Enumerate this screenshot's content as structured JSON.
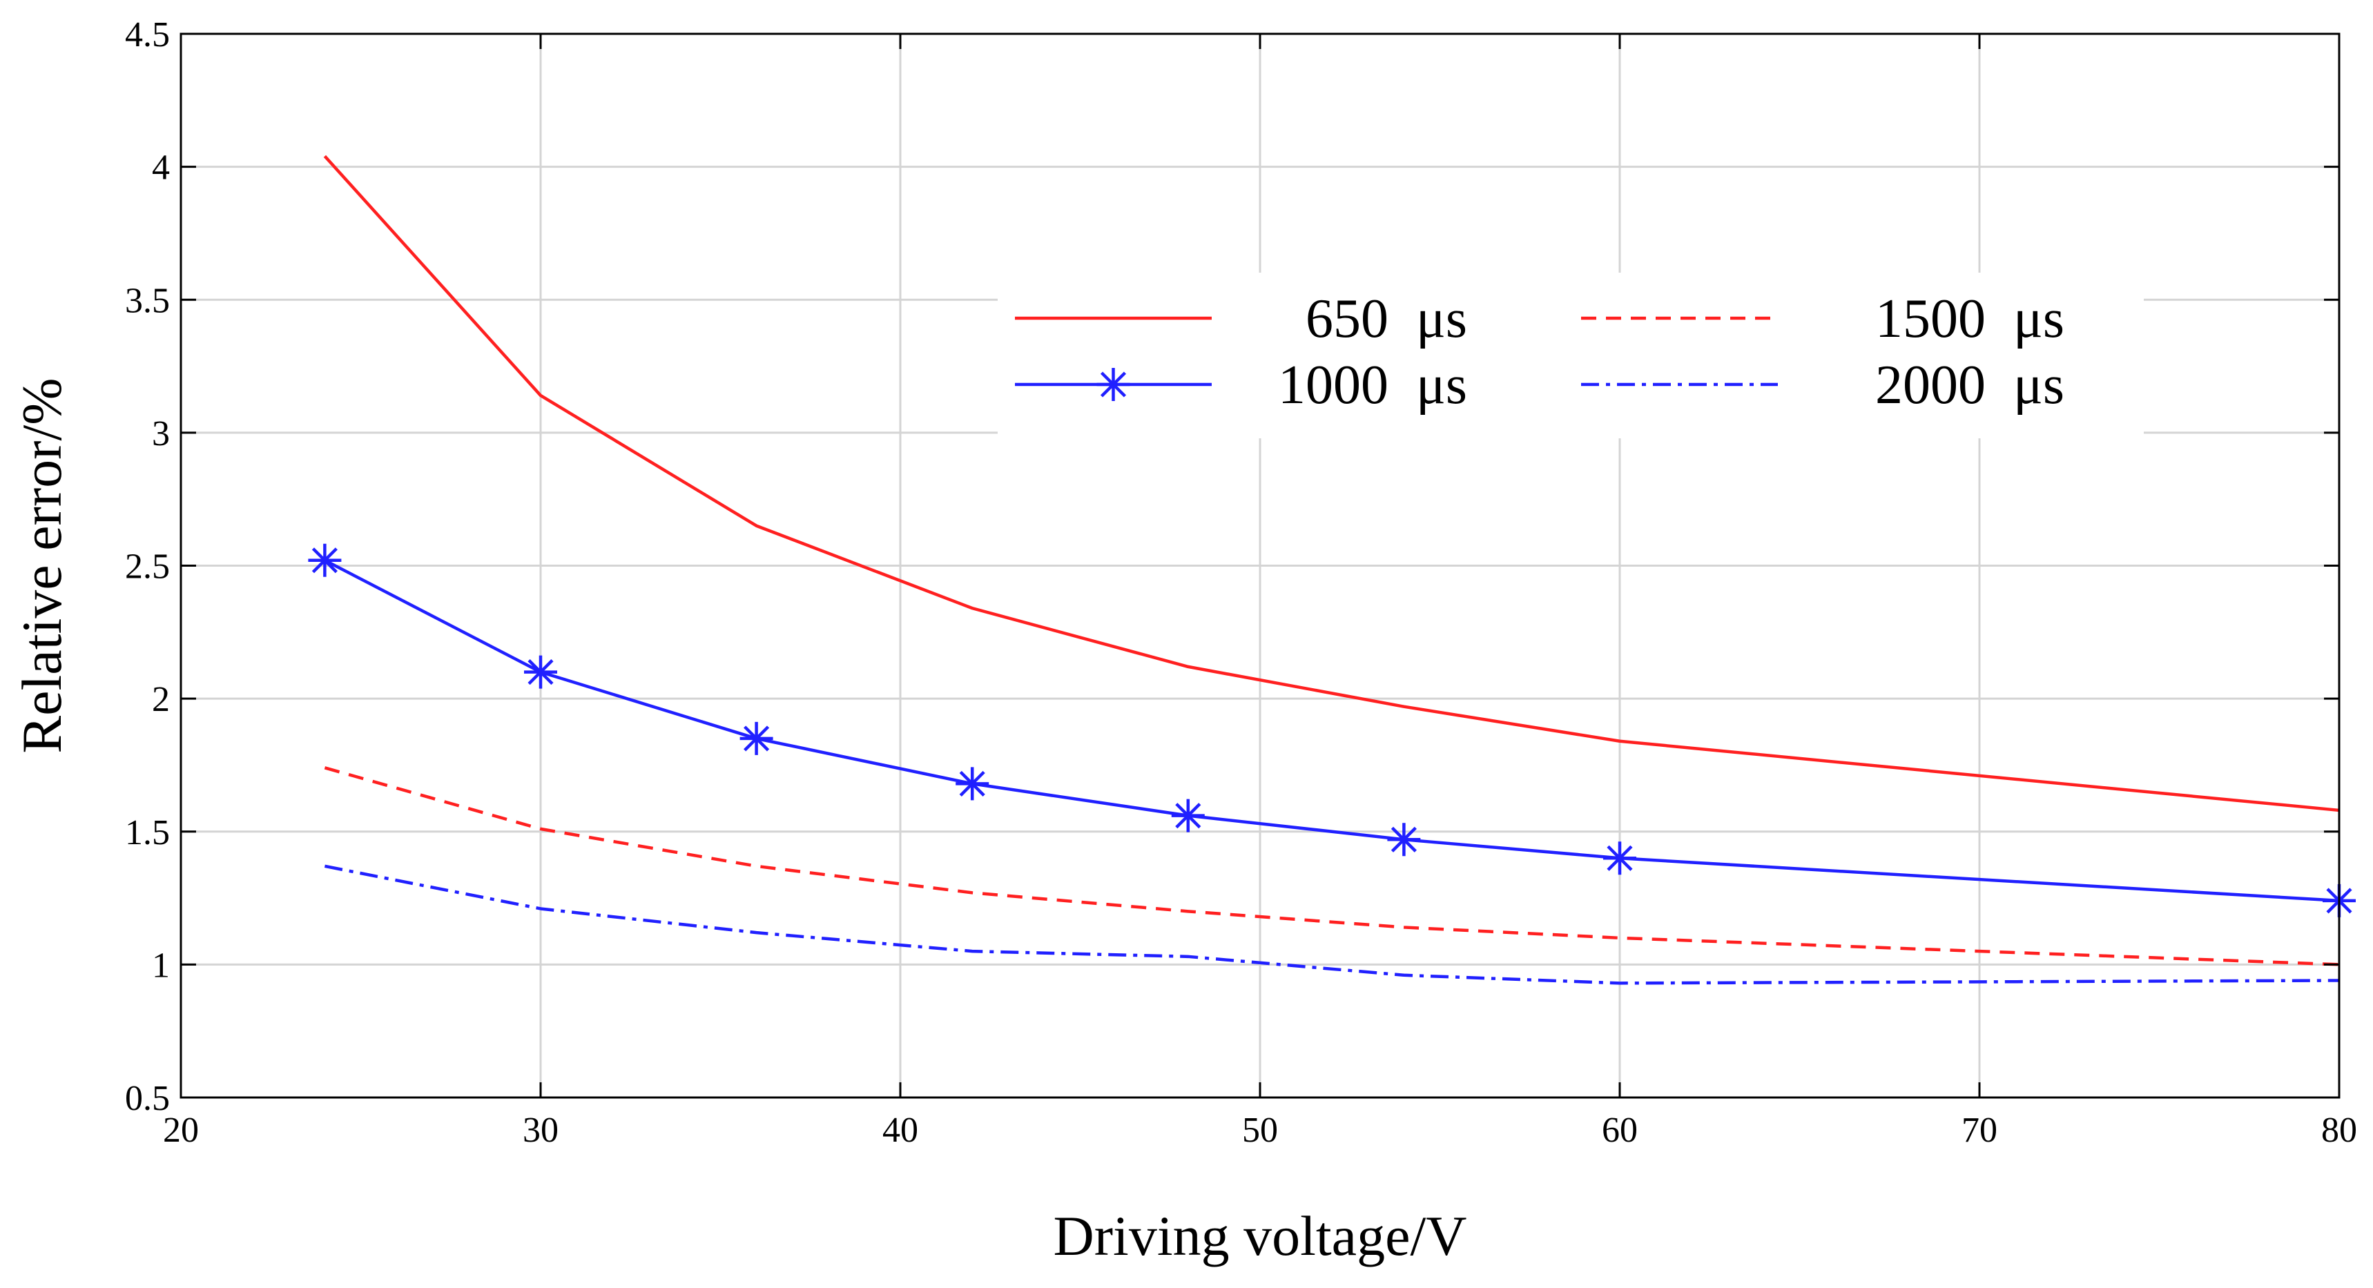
{
  "chart_data": {
    "type": "line",
    "title": "",
    "xlabel": "Driving voltage/V",
    "ylabel": "Relative error/%",
    "xlim": [
      20,
      80
    ],
    "ylim": [
      0.5,
      4.5
    ],
    "xticks": [
      "20",
      "30",
      "40",
      "50",
      "60",
      "70",
      "80"
    ],
    "yticks": [
      "0.5",
      "1",
      "1.5",
      "2",
      "2.5",
      "3",
      "3.5",
      "4",
      "4.5"
    ],
    "grid": true,
    "legend_position": "upper-right",
    "series": [
      {
        "name": "650  μs",
        "color": "#ff2020",
        "line_style": "solid",
        "marker": "none",
        "x": [
          24,
          30,
          36,
          42,
          48,
          54,
          60,
          80
        ],
        "y": [
          4.04,
          3.14,
          2.65,
          2.34,
          2.12,
          1.97,
          1.84,
          1.58
        ]
      },
      {
        "name": "1000  μs",
        "color": "#2020ff",
        "line_style": "solid",
        "marker": "asterisk",
        "x": [
          24,
          30,
          36,
          42,
          48,
          54,
          60,
          80
        ],
        "y": [
          2.52,
          2.1,
          1.85,
          1.68,
          1.56,
          1.47,
          1.4,
          1.24
        ]
      },
      {
        "name": "1500  μs",
        "color": "#ff2020",
        "line_style": "dashed",
        "marker": "none",
        "x": [
          24,
          30,
          36,
          42,
          48,
          54,
          60,
          80
        ],
        "y": [
          1.74,
          1.51,
          1.37,
          1.27,
          1.2,
          1.14,
          1.1,
          1.0
        ]
      },
      {
        "name": "2000  μs",
        "color": "#2020ff",
        "line_style": "dashdot",
        "marker": "none",
        "x": [
          24,
          30,
          36,
          42,
          48,
          54,
          60,
          80
        ],
        "y": [
          1.37,
          1.21,
          1.12,
          1.05,
          1.03,
          0.96,
          0.93,
          0.94
        ]
      }
    ]
  }
}
